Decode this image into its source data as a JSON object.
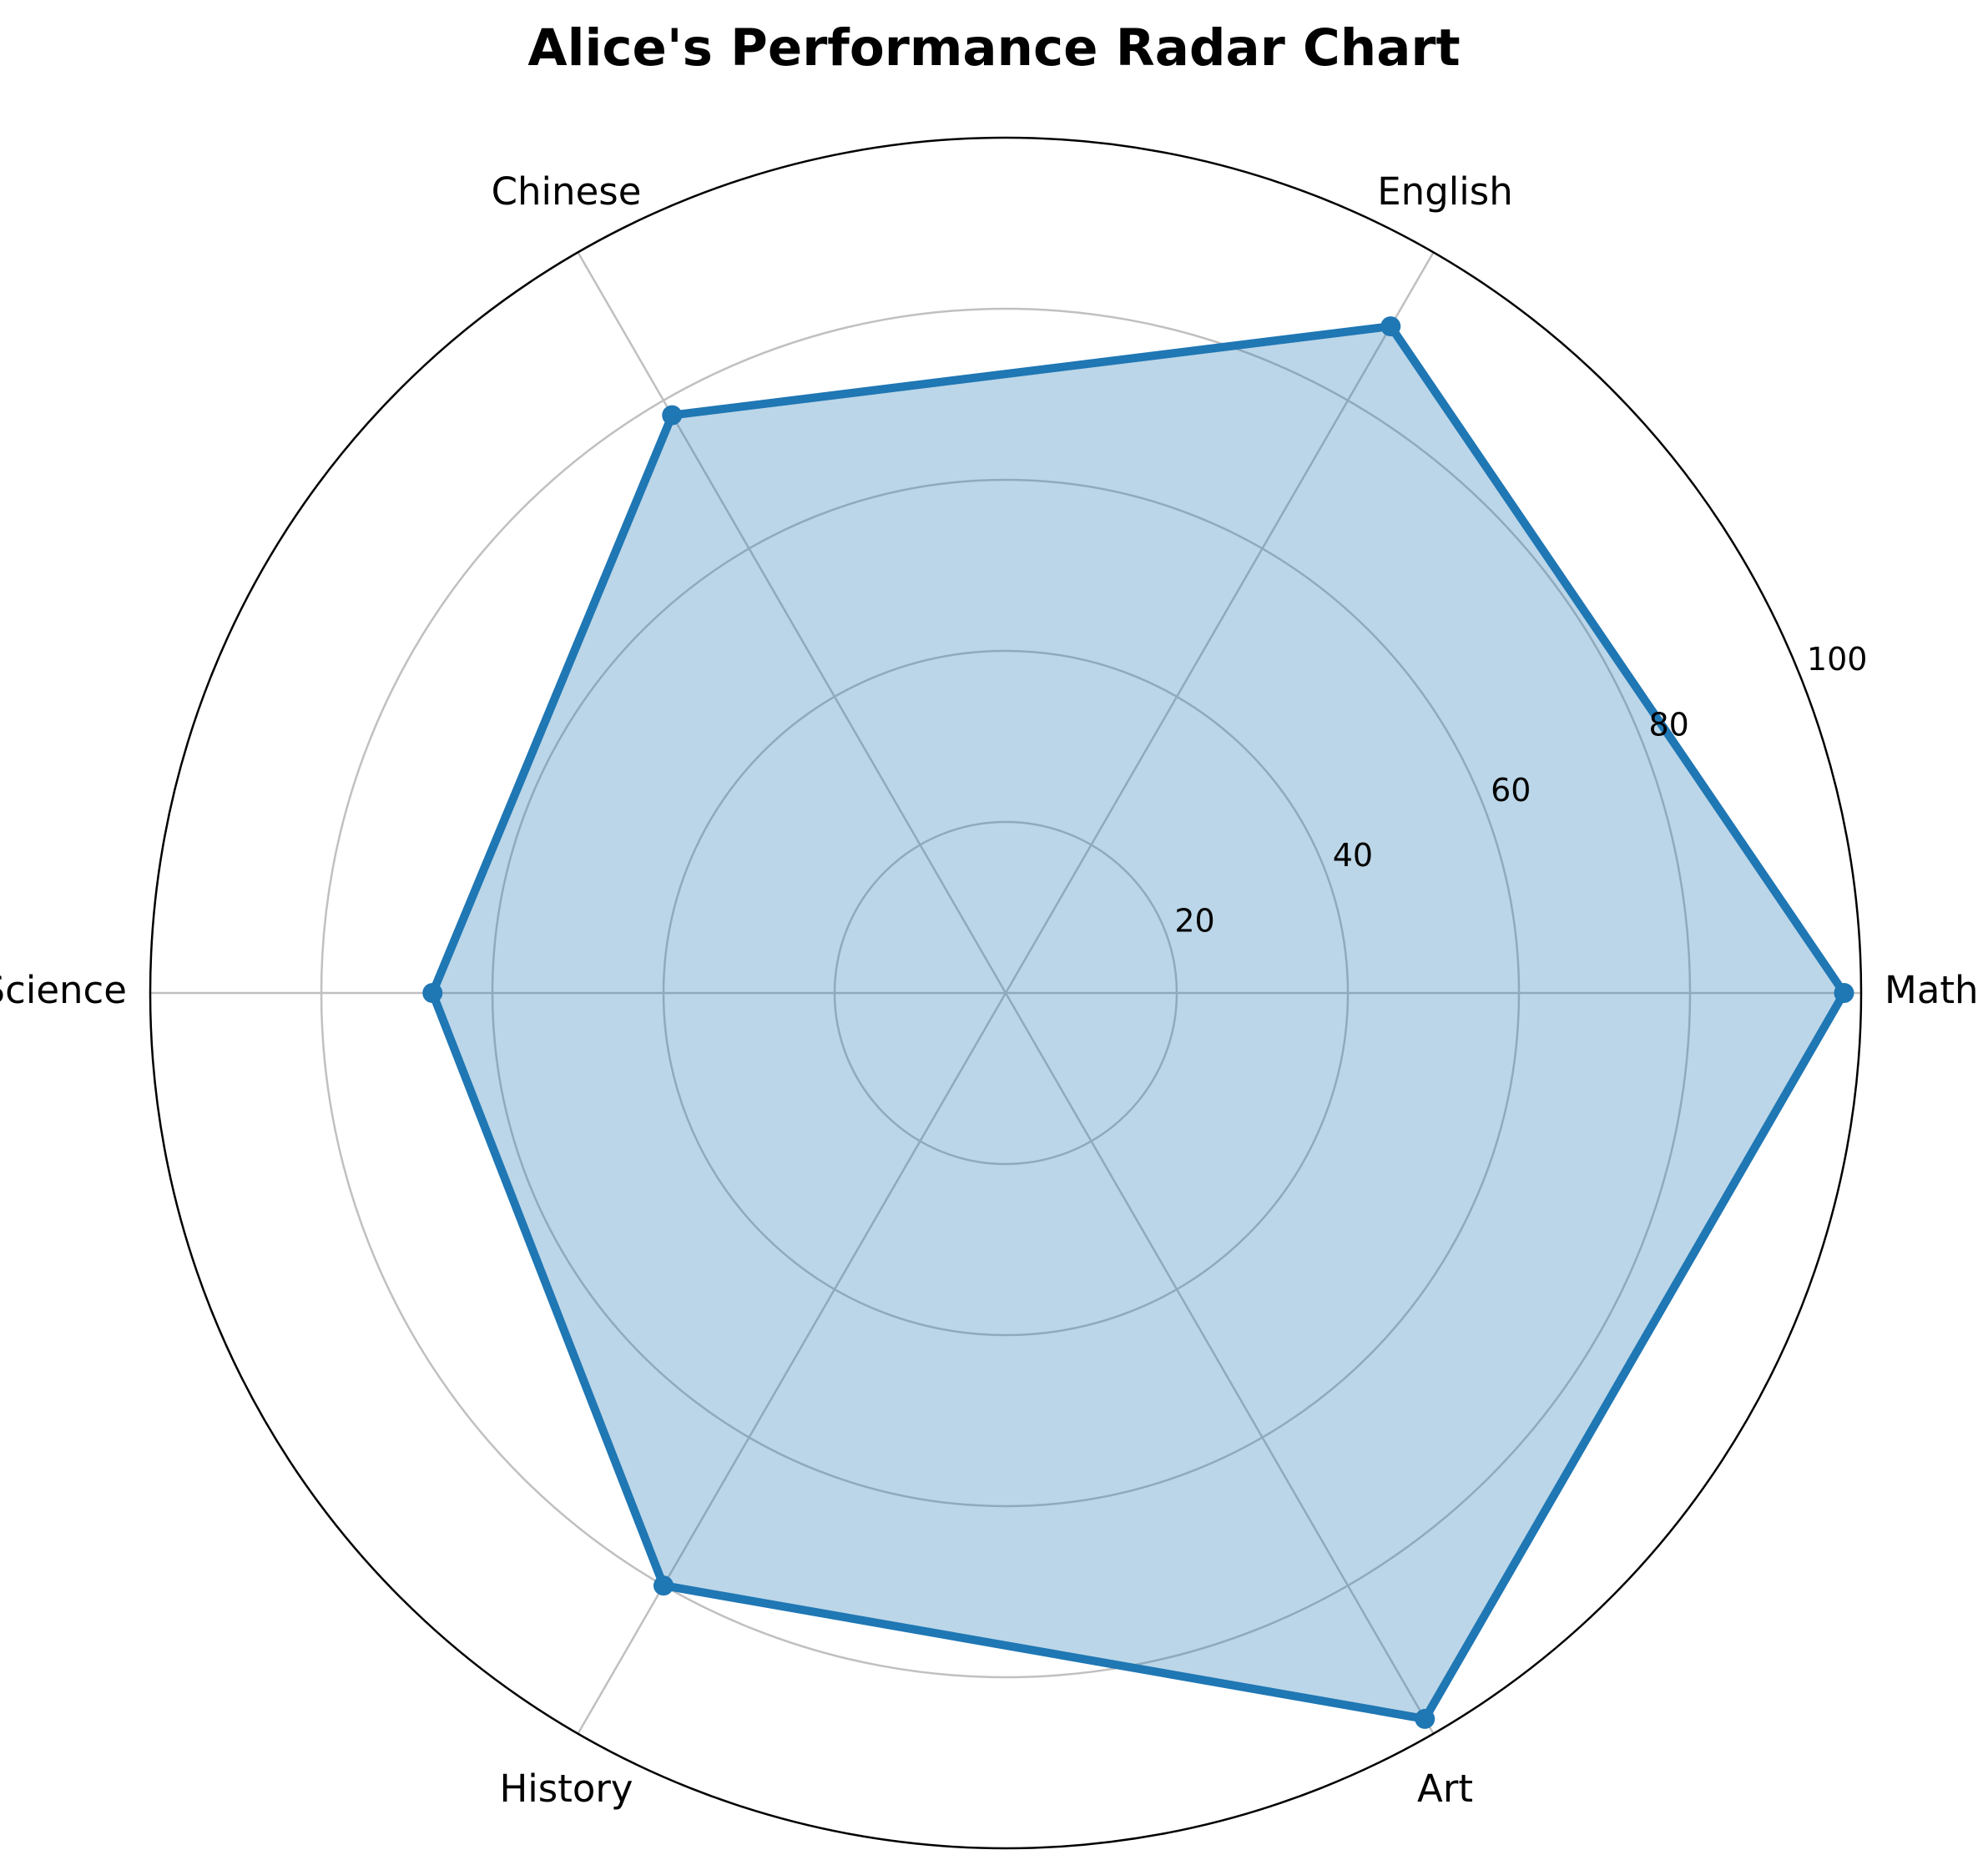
{
  "chart_data": {
    "type": "radar",
    "title": "Alice's Performance Radar Chart",
    "categories": [
      "Math",
      "English",
      "Chinese",
      "Science",
      "History",
      "Art"
    ],
    "series": [
      {
        "values": [
          98,
          90,
          78,
          67,
          80,
          98
        ],
        "color": "#1f77b4",
        "fill_color": "#1f77b4",
        "fill_opacity": 0.3
      }
    ],
    "r_range": [
      0,
      100
    ],
    "r_ticks": [
      20,
      40,
      60,
      80,
      100
    ],
    "grid": true,
    "grid_color": "#c0c0c0"
  }
}
